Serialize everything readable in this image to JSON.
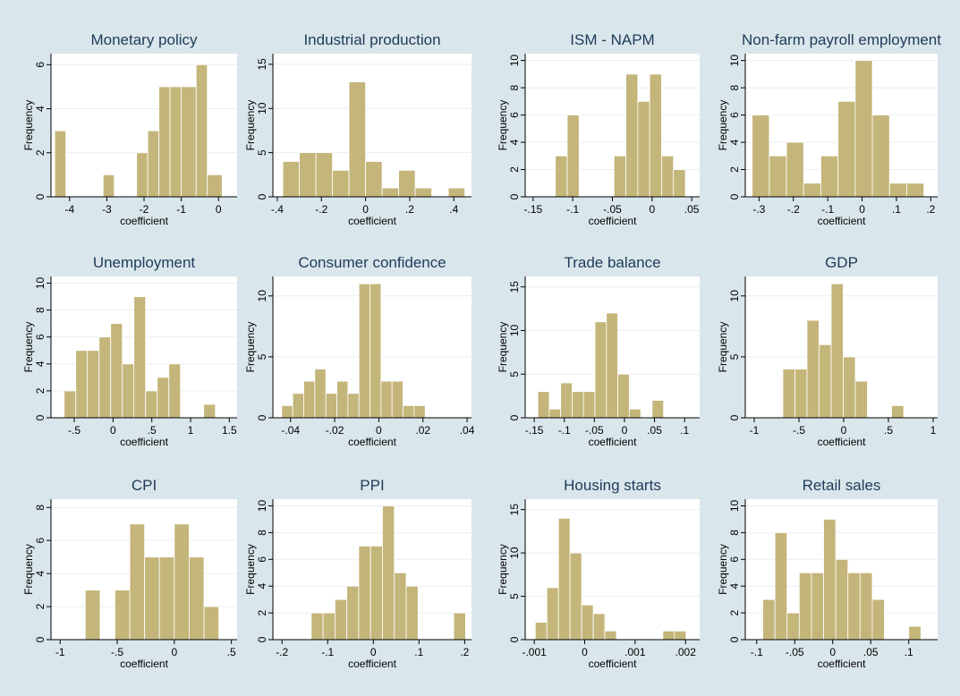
{
  "colors": {
    "background": "#d9e6eb",
    "panel": "#ffffff",
    "bar": "#c4b57a",
    "bar_edge": "#ffffff",
    "title": "#1f3b5a",
    "grid": "#e9eef2"
  },
  "chart_data": [
    {
      "type": "bar",
      "title": "Monetary policy",
      "xlabel": "coefficient",
      "ylabel": "Frequency",
      "xlim": [
        -4.5,
        0.5
      ],
      "ylim": [
        0,
        6.5
      ],
      "xticks": [
        -4,
        -3,
        -2,
        -1,
        0
      ],
      "xtick_labels": [
        "-4",
        "-3",
        "-2",
        "-1",
        "0"
      ],
      "yticks": [
        0,
        2,
        4,
        6
      ],
      "ytick_labels": [
        "0",
        "2",
        "4",
        "6"
      ],
      "bins": [
        [
          -4.4,
          -4.1,
          3
        ],
        [
          -3.1,
          -2.8,
          1
        ],
        [
          -2.2,
          -1.9,
          2
        ],
        [
          -1.9,
          -1.6,
          3
        ],
        [
          -1.6,
          -1.3,
          5
        ],
        [
          -1.3,
          -1.0,
          5
        ],
        [
          -1.0,
          -0.6,
          5
        ],
        [
          -0.6,
          -0.3,
          6
        ],
        [
          -0.3,
          0.1,
          1
        ]
      ]
    },
    {
      "type": "bar",
      "title": "Industrial production",
      "xlabel": "coefficient",
      "ylabel": "Frequency",
      "xlim": [
        -0.42,
        0.48
      ],
      "ylim": [
        0,
        16.2
      ],
      "xticks": [
        -0.4,
        -0.2,
        0,
        0.2,
        0.4
      ],
      "xtick_labels": [
        "-.4",
        "-.2",
        "0",
        ".2",
        ".4"
      ],
      "yticks": [
        0,
        5,
        10,
        15
      ],
      "ytick_labels": [
        "0",
        "5",
        "10",
        "15"
      ],
      "bins": [
        [
          -0.375,
          -0.3,
          4
        ],
        [
          -0.3,
          -0.225,
          5
        ],
        [
          -0.225,
          -0.15,
          5
        ],
        [
          -0.15,
          -0.075,
          3
        ],
        [
          -0.075,
          0.0,
          13
        ],
        [
          0.0,
          0.075,
          4
        ],
        [
          0.075,
          0.15,
          1
        ],
        [
          0.15,
          0.225,
          3
        ],
        [
          0.225,
          0.3,
          1
        ],
        [
          0.375,
          0.45,
          1
        ]
      ]
    },
    {
      "type": "bar",
      "title": "ISM - NAPM",
      "xlabel": "coefficient",
      "ylabel": "Frequency",
      "xlim": [
        -0.16,
        0.06
      ],
      "ylim": [
        0,
        10.5
      ],
      "xticks": [
        -0.15,
        -0.1,
        -0.05,
        0,
        0.05
      ],
      "xtick_labels": [
        "-.15",
        "-.1",
        "-.05",
        "0",
        ".05"
      ],
      "yticks": [
        0,
        2,
        4,
        6,
        8,
        10
      ],
      "ytick_labels": [
        "0",
        "2",
        "4",
        "6",
        "8",
        "10"
      ],
      "bins": [
        [
          -0.122,
          -0.107,
          3
        ],
        [
          -0.107,
          -0.092,
          6
        ],
        [
          -0.048,
          -0.033,
          3
        ],
        [
          -0.033,
          -0.018,
          9
        ],
        [
          -0.018,
          -0.003,
          7
        ],
        [
          -0.003,
          0.012,
          9
        ],
        [
          0.012,
          0.027,
          3
        ],
        [
          0.027,
          0.042,
          2
        ]
      ]
    },
    {
      "type": "bar",
      "title": "Non-farm payroll employment",
      "xlabel": "coefficient",
      "ylabel": "Frequency",
      "xlim": [
        -0.34,
        0.22
      ],
      "ylim": [
        0,
        10.5
      ],
      "xticks": [
        -0.3,
        -0.2,
        -0.1,
        0,
        0.1,
        0.2
      ],
      "xtick_labels": [
        "-.3",
        "-.2",
        "-.1",
        "0",
        ".1",
        ".2"
      ],
      "yticks": [
        0,
        2,
        4,
        6,
        8,
        10
      ],
      "ytick_labels": [
        "0",
        "2",
        "4",
        "6",
        "8",
        "10"
      ],
      "bins": [
        [
          -0.32,
          -0.27,
          6
        ],
        [
          -0.27,
          -0.22,
          3
        ],
        [
          -0.22,
          -0.17,
          4
        ],
        [
          -0.17,
          -0.12,
          1
        ],
        [
          -0.12,
          -0.07,
          3
        ],
        [
          -0.07,
          -0.02,
          7
        ],
        [
          -0.02,
          0.03,
          10
        ],
        [
          0.03,
          0.08,
          6
        ],
        [
          0.08,
          0.13,
          1
        ],
        [
          0.13,
          0.18,
          1
        ]
      ]
    },
    {
      "type": "bar",
      "title": "Unemployment",
      "xlabel": "coefficient",
      "ylabel": "Frequency",
      "xlim": [
        -0.8,
        1.6
      ],
      "ylim": [
        0,
        10.5
      ],
      "xticks": [
        -0.5,
        0,
        0.5,
        1,
        1.5
      ],
      "xtick_labels": [
        "-.5",
        "0",
        ".5",
        "1",
        "1.5"
      ],
      "yticks": [
        0,
        2,
        4,
        6,
        8,
        10
      ],
      "ytick_labels": [
        "0",
        "2",
        "4",
        "6",
        "8",
        "10"
      ],
      "bins": [
        [
          -0.63,
          -0.48,
          2
        ],
        [
          -0.48,
          -0.33,
          5
        ],
        [
          -0.33,
          -0.18,
          5
        ],
        [
          -0.18,
          -0.03,
          6
        ],
        [
          -0.03,
          0.12,
          7
        ],
        [
          0.12,
          0.27,
          4
        ],
        [
          0.27,
          0.42,
          9
        ],
        [
          0.42,
          0.57,
          2
        ],
        [
          0.57,
          0.72,
          3
        ],
        [
          0.72,
          0.87,
          4
        ],
        [
          1.17,
          1.32,
          1
        ]
      ]
    },
    {
      "type": "bar",
      "title": "Consumer confidence",
      "xlabel": "coefficient",
      "ylabel": "Frequency",
      "xlim": [
        -0.048,
        0.042
      ],
      "ylim": [
        0,
        11.6
      ],
      "xticks": [
        -0.04,
        -0.02,
        0,
        0.02,
        0.04
      ],
      "xtick_labels": [
        "-.04",
        "-.02",
        "0",
        ".02",
        ".04"
      ],
      "yticks": [
        0,
        5,
        10
      ],
      "ytick_labels": [
        "0",
        "5",
        "10"
      ],
      "bins": [
        [
          -0.044,
          -0.039,
          1
        ],
        [
          -0.039,
          -0.034,
          2
        ],
        [
          -0.034,
          -0.029,
          3
        ],
        [
          -0.029,
          -0.024,
          4
        ],
        [
          -0.024,
          -0.019,
          2
        ],
        [
          -0.019,
          -0.014,
          3
        ],
        [
          -0.014,
          -0.009,
          2
        ],
        [
          -0.009,
          -0.004,
          11
        ],
        [
          -0.004,
          0.001,
          11
        ],
        [
          0.001,
          0.006,
          3
        ],
        [
          0.006,
          0.011,
          3
        ],
        [
          0.011,
          0.016,
          1
        ],
        [
          0.016,
          0.021,
          1
        ]
      ]
    },
    {
      "type": "bar",
      "title": "Trade balance",
      "xlabel": "coefficient",
      "ylabel": "Frequency",
      "xlim": [
        -0.165,
        0.125
      ],
      "ylim": [
        0,
        16.2
      ],
      "xticks": [
        -0.15,
        -0.1,
        -0.05,
        0,
        0.05,
        0.1
      ],
      "xtick_labels": [
        "-.15",
        "-.1",
        "-.05",
        "0",
        ".05",
        ".1"
      ],
      "yticks": [
        0,
        5,
        10,
        15
      ],
      "ytick_labels": [
        "0",
        "5",
        "10",
        "15"
      ],
      "bins": [
        [
          -0.144,
          -0.125,
          3
        ],
        [
          -0.125,
          -0.106,
          1
        ],
        [
          -0.106,
          -0.087,
          4
        ],
        [
          -0.087,
          -0.068,
          3
        ],
        [
          -0.068,
          -0.049,
          3
        ],
        [
          -0.049,
          -0.03,
          11
        ],
        [
          -0.03,
          -0.011,
          12
        ],
        [
          -0.011,
          0.008,
          5
        ],
        [
          0.008,
          0.027,
          1
        ],
        [
          0.046,
          0.065,
          2
        ]
      ]
    },
    {
      "type": "bar",
      "title": "GDP",
      "xlabel": "coefficient",
      "ylabel": "Frequency",
      "xlim": [
        -1.1,
        1.05
      ],
      "ylim": [
        0,
        11.6
      ],
      "xticks": [
        -1,
        -0.5,
        0,
        0.5,
        1
      ],
      "xtick_labels": [
        "-1",
        "-.5",
        "0",
        ".5",
        "1"
      ],
      "yticks": [
        0,
        5,
        10
      ],
      "ytick_labels": [
        "0",
        "5",
        "10"
      ],
      "bins": [
        [
          -0.68,
          -0.545,
          4
        ],
        [
          -0.545,
          -0.41,
          4
        ],
        [
          -0.41,
          -0.275,
          8
        ],
        [
          -0.275,
          -0.14,
          6
        ],
        [
          -0.14,
          -0.005,
          11
        ],
        [
          -0.005,
          0.13,
          5
        ],
        [
          0.13,
          0.265,
          3
        ],
        [
          0.535,
          0.67,
          1
        ]
      ]
    },
    {
      "type": "bar",
      "title": "CPI",
      "xlabel": "coefficient",
      "ylabel": "Frequency",
      "xlim": [
        -1.08,
        0.55
      ],
      "ylim": [
        0,
        8.5
      ],
      "xticks": [
        -1,
        -0.5,
        0,
        0.5
      ],
      "xtick_labels": [
        "-1",
        "-.5",
        "0",
        ".5"
      ],
      "yticks": [
        0,
        2,
        4,
        6,
        8
      ],
      "ytick_labels": [
        "0",
        "2",
        "4",
        "6",
        "8"
      ],
      "bins": [
        [
          -0.78,
          -0.65,
          3
        ],
        [
          -0.52,
          -0.39,
          3
        ],
        [
          -0.39,
          -0.26,
          7
        ],
        [
          -0.26,
          -0.13,
          5
        ],
        [
          -0.13,
          0.0,
          5
        ],
        [
          0.0,
          0.13,
          7
        ],
        [
          0.13,
          0.26,
          5
        ],
        [
          0.26,
          0.39,
          2
        ]
      ]
    },
    {
      "type": "bar",
      "title": "PPI",
      "xlabel": "coefficient",
      "ylabel": "Frequency",
      "xlim": [
        -0.22,
        0.215
      ],
      "ylim": [
        0,
        10.5
      ],
      "xticks": [
        -0.2,
        -0.1,
        0,
        0.1,
        0.2
      ],
      "xtick_labels": [
        "-.2",
        "-.1",
        "0",
        ".1",
        ".2"
      ],
      "yticks": [
        0,
        2,
        4,
        6,
        8,
        10
      ],
      "ytick_labels": [
        "0",
        "2",
        "4",
        "6",
        "8",
        "10"
      ],
      "bins": [
        [
          -0.136,
          -0.11,
          2
        ],
        [
          -0.11,
          -0.084,
          2
        ],
        [
          -0.084,
          -0.058,
          3
        ],
        [
          -0.058,
          -0.032,
          4
        ],
        [
          -0.032,
          -0.006,
          7
        ],
        [
          -0.006,
          0.02,
          7
        ],
        [
          0.02,
          0.046,
          10
        ],
        [
          0.046,
          0.072,
          5
        ],
        [
          0.072,
          0.098,
          4
        ],
        [
          0.176,
          0.202,
          2
        ]
      ]
    },
    {
      "type": "bar",
      "title": "Housing starts",
      "xlabel": "coefficient",
      "ylabel": "Frequency",
      "xlim": [
        -0.00118,
        0.00228
      ],
      "ylim": [
        0,
        16.2
      ],
      "xticks": [
        -0.001,
        0,
        0.001,
        0.002
      ],
      "xtick_labels": [
        "-.001",
        "0",
        ".001",
        ".002"
      ],
      "yticks": [
        0,
        5,
        10,
        15
      ],
      "ytick_labels": [
        "0",
        "5",
        "10",
        "15"
      ],
      "bins": [
        [
          -0.00098,
          -0.00075,
          2
        ],
        [
          -0.00075,
          -0.00052,
          6
        ],
        [
          -0.00052,
          -0.00029,
          14
        ],
        [
          -0.00029,
          -6e-05,
          10
        ],
        [
          -6e-05,
          0.00017,
          4
        ],
        [
          0.00017,
          0.0004,
          3
        ],
        [
          0.0004,
          0.00063,
          1
        ],
        [
          0.00155,
          0.00178,
          1
        ],
        [
          0.00178,
          0.00201,
          1
        ]
      ]
    },
    {
      "type": "bar",
      "title": "Retail sales",
      "xlabel": "coefficient",
      "ylabel": "Frequency",
      "xlim": [
        -0.115,
        0.138
      ],
      "ylim": [
        0,
        10.5
      ],
      "xticks": [
        -0.1,
        -0.05,
        0,
        0.05,
        0.1
      ],
      "xtick_labels": [
        "-.1",
        "-.05",
        "0",
        ".05",
        ".1"
      ],
      "yticks": [
        0,
        2,
        4,
        6,
        8,
        10
      ],
      "ytick_labels": [
        "0",
        "2",
        "4",
        "6",
        "8",
        "10"
      ],
      "bins": [
        [
          -0.092,
          -0.076,
          3
        ],
        [
          -0.076,
          -0.06,
          8
        ],
        [
          -0.06,
          -0.044,
          2
        ],
        [
          -0.044,
          -0.028,
          5
        ],
        [
          -0.028,
          -0.012,
          5
        ],
        [
          -0.012,
          0.004,
          9
        ],
        [
          0.004,
          0.02,
          6
        ],
        [
          0.02,
          0.036,
          5
        ],
        [
          0.036,
          0.052,
          5
        ],
        [
          0.052,
          0.068,
          3
        ],
        [
          0.1,
          0.116,
          1
        ]
      ]
    }
  ]
}
